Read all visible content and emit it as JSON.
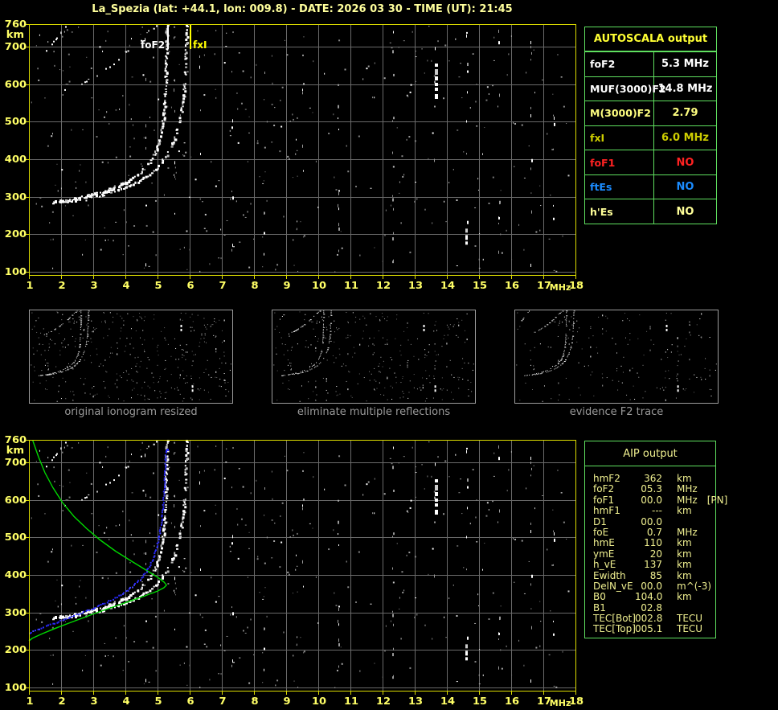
{
  "header": {
    "title": "La_Spezia (lat: +44.1, lon: 009.8) - DATE:  2026 03 30 - TIME (UT):  21:45"
  },
  "colors": {
    "title": "#FFFF9C",
    "axis_label": "#FFFF66",
    "plot_border": "#DCDC00",
    "grid": "#6A6A6A",
    "table_green": "#5FE05F",
    "autoscala_header": "#FFFF33",
    "aip_text": "#F0F090",
    "profile_green": "#00D800",
    "trace_blue": "#2B2BFF",
    "trace_white": "#FFFFFF",
    "caption_gray": "#9A9A9A",
    "fof2_marker": "#FFFFFF",
    "fxi_marker": "#FFFF00"
  },
  "autoscala": {
    "title": "AUTOSCALA output",
    "rows": [
      {
        "label": "foF2",
        "value": "5.3 MHz",
        "color": "#FFFFFF"
      },
      {
        "label": "MUF(3000)F2",
        "value": "14.8 MHz",
        "color": "#FFFFFF"
      },
      {
        "label": "M(3000)F2",
        "value": "2.79",
        "color": "#FFFF80"
      },
      {
        "label": "fxI",
        "value": "6.0 MHz",
        "color": "#CDCD00"
      },
      {
        "label": "foF1",
        "value": "NO",
        "color": "#FF2222"
      },
      {
        "label": "ftEs",
        "value": "NO",
        "color": "#1B8CFF"
      },
      {
        "label": "h'Es",
        "value": "NO",
        "color": "#FFFF99"
      }
    ]
  },
  "aip": {
    "title": "AIP output",
    "rows": [
      {
        "label": "hmF2",
        "value": "362",
        "unit": "km",
        "extra": ""
      },
      {
        "label": "foF2",
        "value": "05.3",
        "unit": "MHz",
        "extra": ""
      },
      {
        "label": "foF1",
        "value": "00.0",
        "unit": "MHz",
        "extra": "[PN]"
      },
      {
        "label": "hmF1",
        "value": "---",
        "unit": "km",
        "extra": ""
      },
      {
        "label": "D1",
        "value": "00.0",
        "unit": "",
        "extra": ""
      },
      {
        "label": "foE",
        "value": "0.7",
        "unit": "MHz",
        "extra": ""
      },
      {
        "label": "hmE",
        "value": "110",
        "unit": "km",
        "extra": ""
      },
      {
        "label": "ymE",
        "value": "20",
        "unit": "km",
        "extra": ""
      },
      {
        "label": "h_vE",
        "value": "137",
        "unit": "km",
        "extra": ""
      },
      {
        "label": "Ewidth",
        "value": "85",
        "unit": "km",
        "extra": ""
      },
      {
        "label": "DelN_vE",
        "value": "00.0",
        "unit": "m^(-3)",
        "extra": ""
      },
      {
        "label": "B0",
        "value": "104.0",
        "unit": "km",
        "extra": ""
      },
      {
        "label": "B1",
        "value": "02.8",
        "unit": "",
        "extra": ""
      },
      {
        "label": "TEC[Bot]",
        "value": "002.8",
        "unit": "TECU",
        "extra": ""
      },
      {
        "label": "TEC[Top]",
        "value": "005.1",
        "unit": "TECU",
        "extra": ""
      }
    ]
  },
  "thumbnails": [
    {
      "caption": "original ionogram resized"
    },
    {
      "caption": "eliminate multiple reflections"
    },
    {
      "caption": "evidence F2 trace"
    }
  ],
  "chart_data": {
    "type": "scatter",
    "title": "",
    "xlabel": "MHz",
    "ylabel": "km",
    "xlim": [
      1,
      18
    ],
    "ylim": [
      91,
      760
    ],
    "x_ticks": [
      1,
      2,
      3,
      4,
      5,
      6,
      7,
      8,
      9,
      10,
      11,
      12,
      13,
      14,
      15,
      16,
      17,
      18
    ],
    "y_ticks": [
      760,
      700,
      600,
      500,
      400,
      300,
      200,
      100
    ],
    "grid": true,
    "annotations": {
      "foF2": {
        "label": "foF2",
        "mhz": 5.3
      },
      "fxI": {
        "label": "fxI",
        "mhz": 6.0
      }
    },
    "series": [
      {
        "name": "F2-trace-O-first-hop",
        "color": "#FFFFFF",
        "points": [
          [
            1.75,
            288
          ],
          [
            2.0,
            291
          ],
          [
            2.3,
            295
          ],
          [
            2.6,
            300
          ],
          [
            2.9,
            306
          ],
          [
            3.2,
            313
          ],
          [
            3.5,
            322
          ],
          [
            3.8,
            333
          ],
          [
            4.1,
            346
          ],
          [
            4.4,
            363
          ],
          [
            4.65,
            383
          ],
          [
            4.85,
            408
          ],
          [
            5.0,
            438
          ],
          [
            5.1,
            472
          ],
          [
            5.17,
            515
          ],
          [
            5.21,
            565
          ],
          [
            5.24,
            625
          ],
          [
            5.26,
            700
          ],
          [
            5.27,
            758
          ]
        ]
      },
      {
        "name": "F2-trace-X-first-hop",
        "color": "#FFFFFF",
        "points": [
          [
            2.4,
            293
          ],
          [
            2.8,
            298
          ],
          [
            3.2,
            305
          ],
          [
            3.6,
            314
          ],
          [
            4.0,
            326
          ],
          [
            4.4,
            342
          ],
          [
            4.8,
            365
          ],
          [
            5.1,
            392
          ],
          [
            5.35,
            425
          ],
          [
            5.55,
            465
          ],
          [
            5.7,
            515
          ],
          [
            5.8,
            575
          ],
          [
            5.85,
            645
          ],
          [
            5.88,
            715
          ],
          [
            5.9,
            758
          ]
        ]
      },
      {
        "name": "F2-trace-second-hop",
        "color": "#DDDDDD",
        "points": [
          [
            2.05,
            582
          ],
          [
            2.35,
            592
          ],
          [
            2.65,
            604
          ],
          [
            2.95,
            618
          ],
          [
            3.25,
            634
          ],
          [
            3.55,
            652
          ],
          [
            3.85,
            672
          ],
          [
            4.15,
            695
          ],
          [
            4.45,
            720
          ],
          [
            4.7,
            742
          ],
          [
            4.95,
            757
          ]
        ]
      },
      {
        "name": "F2-trace-second-hop-x",
        "color": "#DDDDDD",
        "points": [
          [
            1.5,
            688
          ],
          [
            1.7,
            708
          ],
          [
            1.9,
            730
          ],
          [
            2.05,
            748
          ],
          [
            2.15,
            757
          ]
        ]
      }
    ],
    "bottom_overlays": {
      "electron_density_profile": {
        "color": "#00D800",
        "points": [
          [
            1.12,
            758
          ],
          [
            1.3,
            714
          ],
          [
            1.5,
            672
          ],
          [
            1.75,
            632
          ],
          [
            2.05,
            592
          ],
          [
            2.4,
            556
          ],
          [
            2.8,
            523
          ],
          [
            3.2,
            494
          ],
          [
            3.7,
            463
          ],
          [
            4.2,
            436
          ],
          [
            4.7,
            410
          ],
          [
            5.0,
            394
          ],
          [
            5.2,
            381
          ],
          [
            5.28,
            373
          ],
          [
            5.2,
            366
          ],
          [
            5.0,
            357
          ],
          [
            4.6,
            344
          ],
          [
            4.2,
            332
          ],
          [
            3.8,
            320
          ],
          [
            3.4,
            308
          ],
          [
            3.0,
            296
          ],
          [
            2.6,
            283
          ],
          [
            2.2,
            270
          ],
          [
            1.8,
            257
          ],
          [
            1.4,
            243
          ],
          [
            1.1,
            231
          ],
          [
            1.0,
            224
          ]
        ]
      },
      "restored_trace": {
        "color": "#2B2BFF",
        "points": [
          [
            1.0,
            246
          ],
          [
            1.2,
            252
          ],
          [
            1.45,
            262
          ],
          [
            1.6,
            266
          ],
          [
            1.8,
            272
          ],
          [
            2.1,
            283
          ],
          [
            2.4,
            293
          ],
          [
            2.7,
            302
          ],
          [
            3.0,
            312
          ],
          [
            3.3,
            323
          ],
          [
            3.6,
            336
          ],
          [
            3.9,
            351
          ],
          [
            4.2,
            369
          ],
          [
            4.45,
            388
          ],
          [
            4.65,
            410
          ],
          [
            4.82,
            437
          ],
          [
            4.95,
            468
          ],
          [
            5.05,
            505
          ],
          [
            5.13,
            550
          ],
          [
            5.18,
            600
          ],
          [
            5.22,
            660
          ],
          [
            5.25,
            732
          ]
        ]
      }
    },
    "interference_columns": [
      4.6,
      5.5,
      6.3,
      7.3,
      8.3,
      9.5,
      10.6,
      12.3,
      13.6,
      14.6,
      15.6,
      16.6,
      17.3
    ],
    "bright_spots": [
      {
        "f": 13.65,
        "h_from": 565,
        "h_to": 655,
        "w": 4
      },
      {
        "f": 14.6,
        "h_from": 168,
        "h_to": 215,
        "w": 3
      }
    ],
    "noise": {
      "seed": 1337,
      "gray_dots": 330,
      "white_dots": 60
    },
    "thumbnail_noise": [
      330,
      255,
      135
    ]
  }
}
